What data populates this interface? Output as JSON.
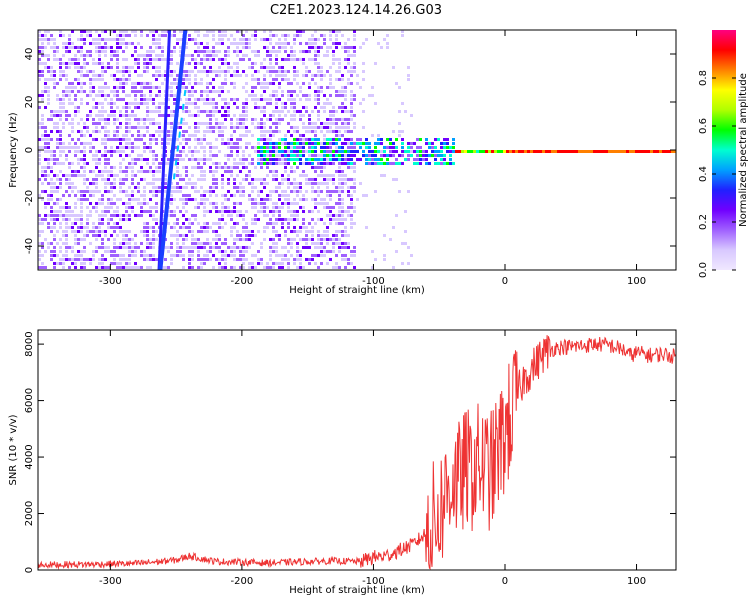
{
  "title": "C2E1.2023.124.14.26.G03",
  "chart_data": [
    {
      "type": "heatmap",
      "xlabel": "Height of straight line (km)",
      "ylabel": "Frequency (Hz)",
      "xlim": [
        -355,
        130
      ],
      "ylim": [
        -50,
        50
      ],
      "xticks": [
        -300,
        -200,
        -100,
        0,
        100
      ],
      "yticks": [
        -40,
        -20,
        0,
        20,
        40
      ],
      "grid": false,
      "colorbar": {
        "label": "Normalized spectral amplitude",
        "ticks": [
          0.0,
          0.2,
          0.4,
          0.6,
          0.8
        ],
        "range": [
          0,
          1
        ],
        "colors": [
          "#f0e8ff",
          "#d8c8ff",
          "#a060ff",
          "#7000ff",
          "#2020ff",
          "#00a0ff",
          "#00ffd0",
          "#00ff00",
          "#b0ff00",
          "#ffff00",
          "#ff8000",
          "#ff0000",
          "#ff0080"
        ]
      },
      "features": {
        "dense_noise_until_height": -115,
        "line_at_frequency": 0,
        "line_from_height": -40,
        "diagonal_streaks": [
          {
            "height_at_top": -255,
            "height_at_bottom": -263,
            "level": "low"
          },
          {
            "height_at_top": -243,
            "height_at_bottom": -262,
            "level": "high"
          }
        ]
      }
    },
    {
      "type": "line",
      "xlabel": "Height of straight line (km)",
      "ylabel": "SNR (10 * v/v)",
      "xlim": [
        -355,
        130
      ],
      "ylim": [
        0,
        8500
      ],
      "xticks": [
        -300,
        -200,
        -100,
        0,
        100
      ],
      "yticks": [
        0,
        2000,
        4000,
        6000,
        8000
      ],
      "grid": false,
      "series": [
        {
          "color": "#ee3333",
          "x": [
            -355,
            -320,
            -280,
            -250,
            -240,
            -220,
            -200,
            -180,
            -150,
            -130,
            -110,
            -100,
            -90,
            -80,
            -70,
            -60,
            -50,
            -40,
            -35,
            -30,
            -25,
            -20,
            -15,
            -10,
            -5,
            0,
            5,
            10,
            15,
            20,
            25,
            30,
            35,
            40,
            50,
            60,
            70,
            80,
            90,
            95,
            100,
            110,
            120,
            130
          ],
          "y": [
            180,
            200,
            230,
            350,
            500,
            300,
            280,
            250,
            300,
            320,
            300,
            450,
            500,
            700,
            900,
            1300,
            2000,
            3300,
            3100,
            3600,
            3500,
            3800,
            3600,
            3500,
            4200,
            4800,
            5500,
            6300,
            6800,
            7100,
            7400,
            7700,
            7800,
            7900,
            7900,
            7950,
            8000,
            7950,
            7800,
            7600,
            7700,
            7600,
            7650,
            7550
          ]
        }
      ]
    }
  ]
}
